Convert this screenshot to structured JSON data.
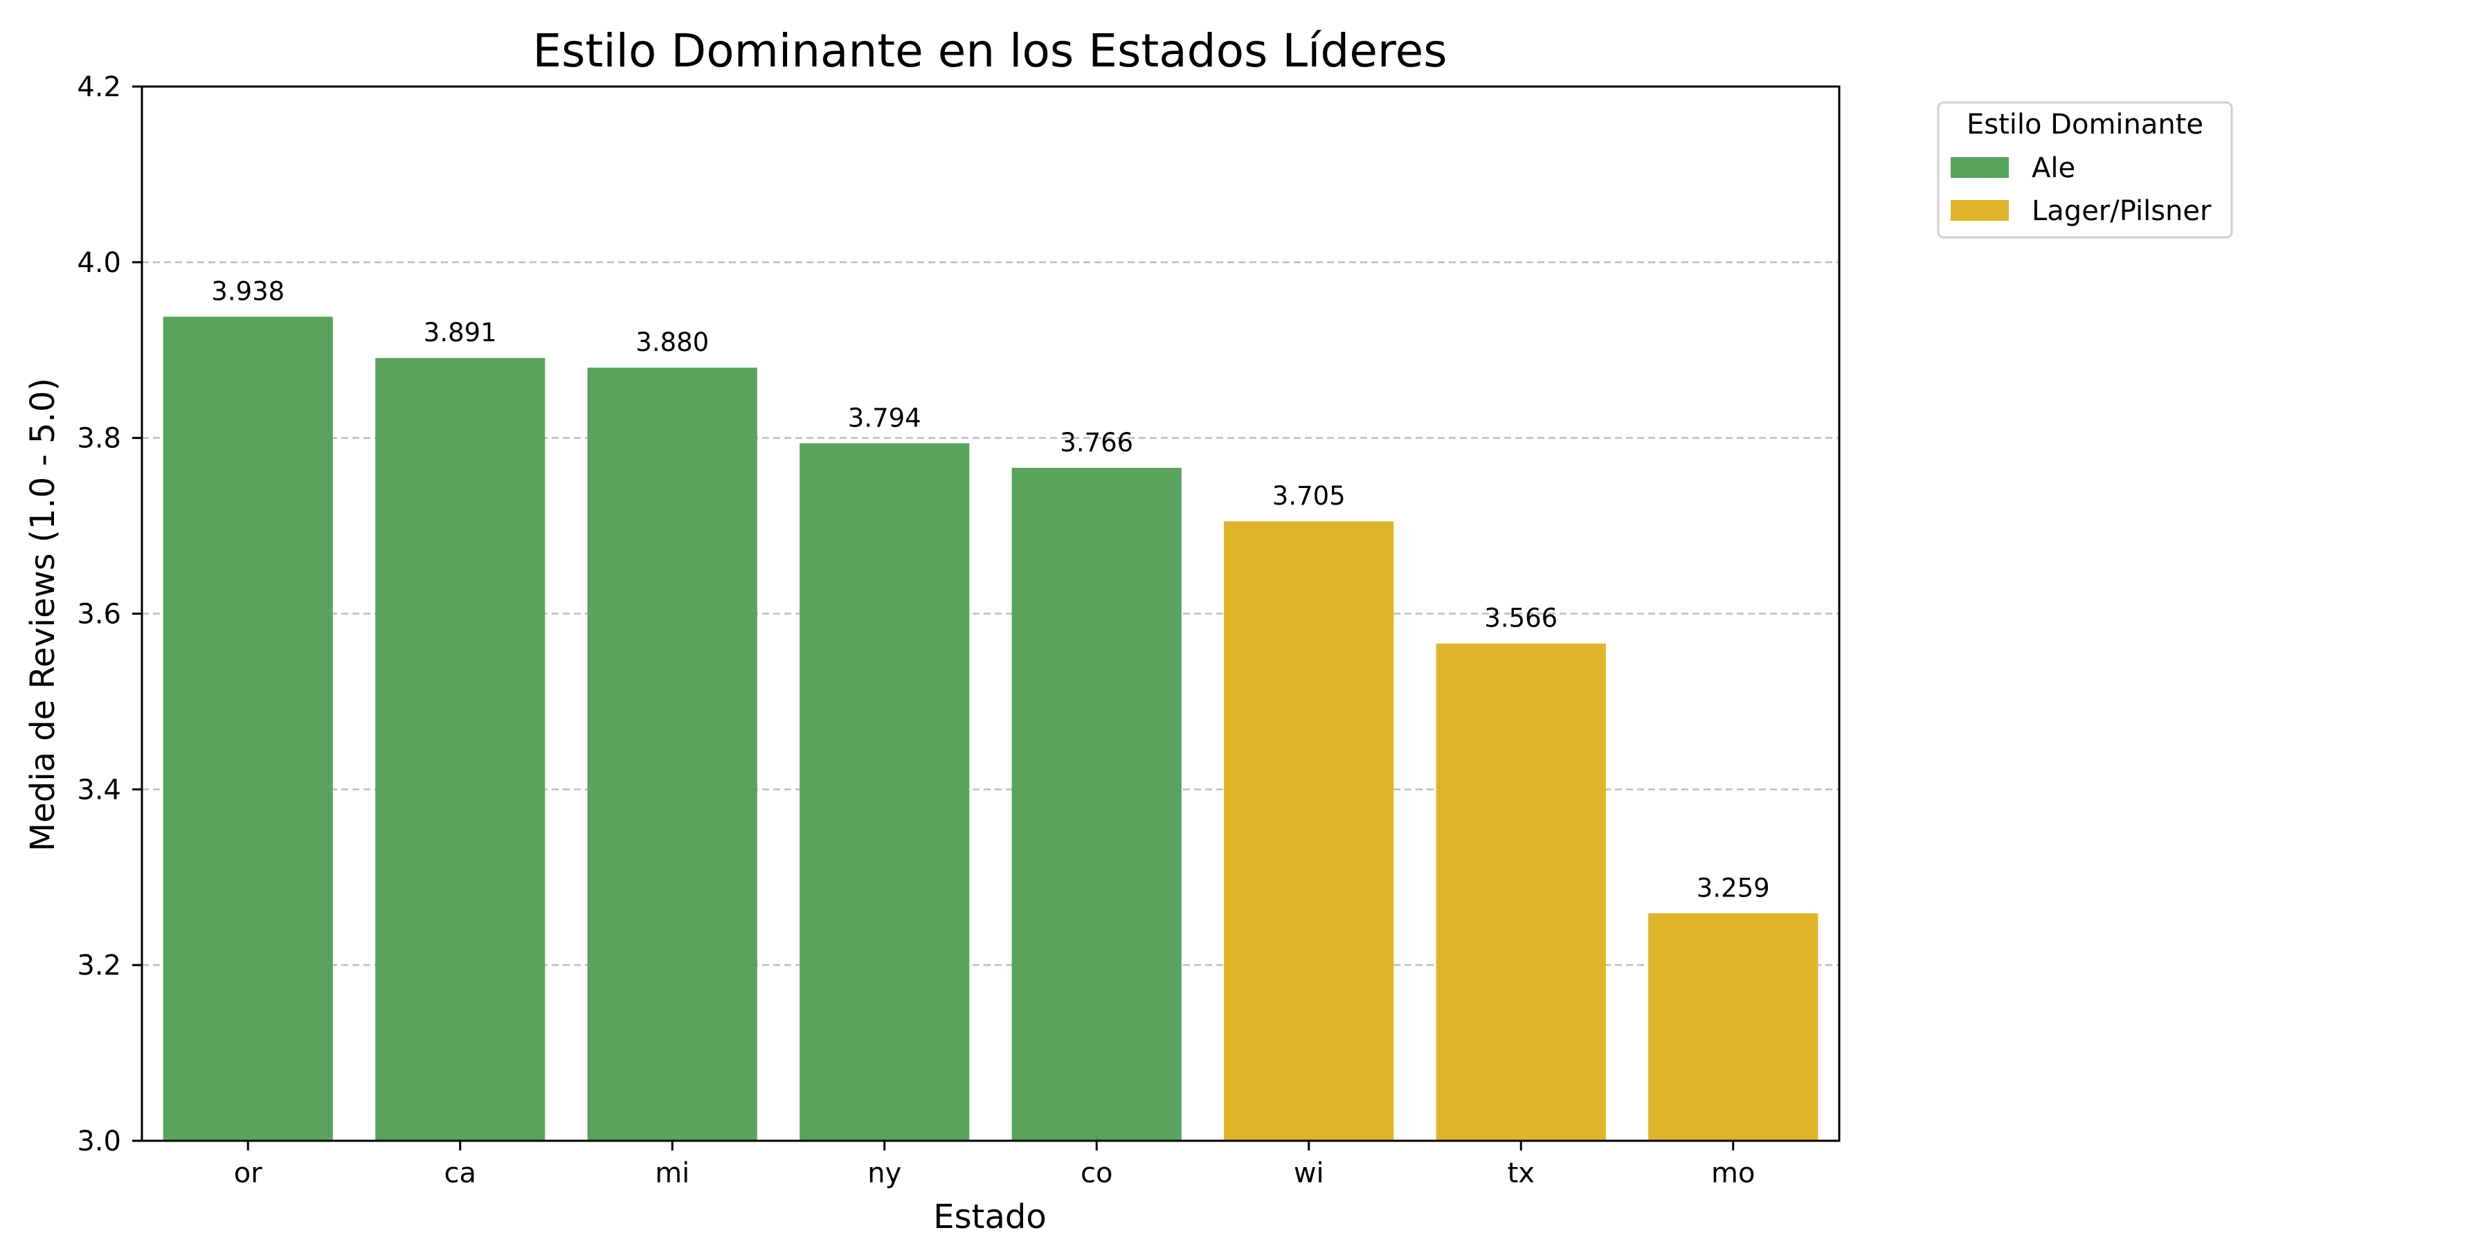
{
  "chart_data": {
    "type": "bar",
    "title": "Estilo Dominante en los Estados Líderes",
    "xlabel": "Estado",
    "ylabel": "Media de Reviews (1.0 - 5.0)",
    "categories": [
      "or",
      "ca",
      "mi",
      "ny",
      "co",
      "wi",
      "tx",
      "mo"
    ],
    "values": [
      3.938,
      3.891,
      3.88,
      3.794,
      3.766,
      3.705,
      3.566,
      3.259
    ],
    "value_labels": [
      "3.938",
      "3.891",
      "3.880",
      "3.794",
      "3.766",
      "3.705",
      "3.566",
      "3.259"
    ],
    "styles": [
      "Ale",
      "Ale",
      "Ale",
      "Ale",
      "Ale",
      "Lager/Pilsner",
      "Lager/Pilsner",
      "Lager/Pilsner"
    ],
    "ylim": [
      3.0,
      4.2
    ],
    "yticks": [
      3.0,
      3.2,
      3.4,
      3.6,
      3.8,
      4.0,
      4.2
    ],
    "ytick_labels": [
      "3.0",
      "3.2",
      "3.4",
      "3.6",
      "3.8",
      "4.0",
      "4.2"
    ],
    "grid": "y-dashed",
    "legend": {
      "title": "Estilo Dominante",
      "placement": "outside-top-right",
      "entries": [
        {
          "label": "Ale",
          "color": "#59a35d"
        },
        {
          "label": "Lager/Pilsner",
          "color": "#e0b428"
        }
      ]
    }
  }
}
